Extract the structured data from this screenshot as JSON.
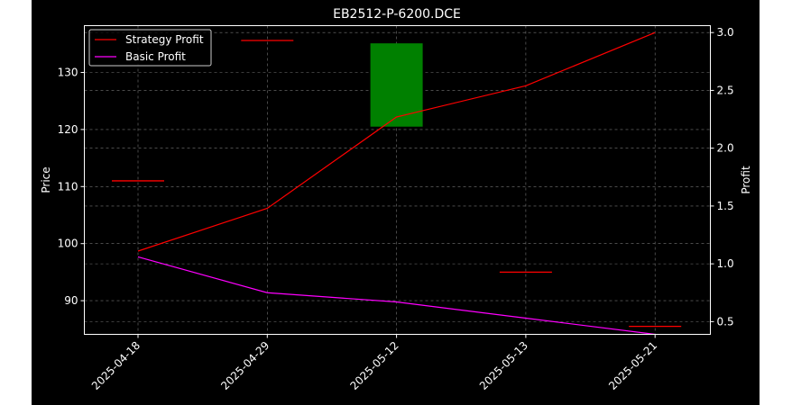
{
  "chart_data": {
    "type": "line",
    "title": "EB2512-P-6200.DCE",
    "categories": [
      "2025-04-18",
      "2025-04-29",
      "2025-05-12",
      "2025-05-13",
      "2025-05-21"
    ],
    "left_axis": {
      "label": "Price",
      "ylim": [
        84.1,
        138.2
      ],
      "ticks": [
        90,
        100,
        110,
        120,
        130
      ]
    },
    "right_axis": {
      "label": "Profit",
      "ylim": [
        0.39,
        3.06
      ],
      "ticks": [
        0.5,
        1.0,
        1.5,
        2.0,
        2.5,
        3.0
      ],
      "tick_labels": [
        "0.5",
        "1.0",
        "1.5",
        "2.0",
        "2.5",
        "3.0"
      ]
    },
    "candles": [
      {
        "x": "2025-04-18",
        "open": 111,
        "close": 111,
        "color": "#ff0000"
      },
      {
        "x": "2025-04-29",
        "open": 135.6,
        "close": 135.6,
        "color": "#ff0000"
      },
      {
        "x": "2025-05-12",
        "open": 135.1,
        "close": 120.5,
        "color": "#008000"
      },
      {
        "x": "2025-05-13",
        "open": 95.0,
        "close": 95.0,
        "color": "#ff0000"
      },
      {
        "x": "2025-05-21",
        "open": 85.5,
        "close": 85.5,
        "color": "#ff0000"
      }
    ],
    "series": [
      {
        "name": "Strategy Profit",
        "axis": "right",
        "color": "#ff0000",
        "values": [
          1.11,
          1.48,
          2.27,
          2.54,
          3.0
        ]
      },
      {
        "name": "Basic Profit",
        "axis": "right",
        "color": "#ff00ff",
        "values": [
          1.06,
          0.75,
          0.67,
          0.53,
          0.39
        ]
      }
    ],
    "grid": true,
    "legend": "top-left"
  }
}
